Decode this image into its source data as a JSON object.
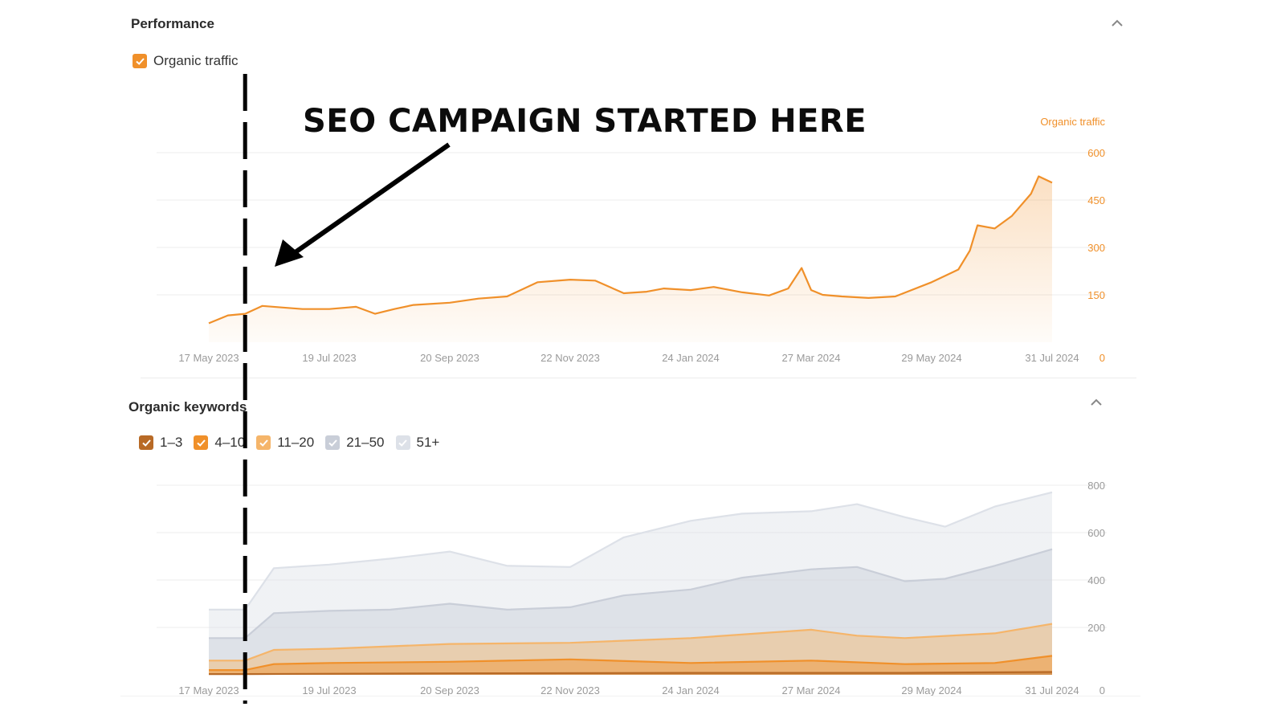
{
  "performance": {
    "title": "Performance",
    "legend_label": "Organic traffic",
    "legend_color": "#f0902a"
  },
  "keywords": {
    "title": "Organic keywords",
    "legend": [
      {
        "label": "1–3",
        "color": "#b86a26",
        "checked": true
      },
      {
        "label": "4–10",
        "color": "#f0902a",
        "checked": true
      },
      {
        "label": "11–20",
        "color": "#f5b56a",
        "checked": true
      },
      {
        "label": "21–50",
        "color": "#c9ced8",
        "checked": true
      },
      {
        "label": "51+",
        "color": "#dde1e8",
        "checked": true
      }
    ]
  },
  "annotation": {
    "text": "SEO CAMPAIGN STARTED HERE",
    "marker_date": "2023-06-05"
  },
  "colors": {
    "traffic_line": "#f0902a",
    "axis_text": "#9a9a9a",
    "axis_orange": "#f0902a",
    "grid": "#ececec"
  },
  "chart_data": [
    {
      "type": "area",
      "title": "",
      "y_axis_title": "Organic traffic",
      "x_ticks": [
        "17 May 2023",
        "19 Jul 2023",
        "20 Sep 2023",
        "22 Nov 2023",
        "24 Jan 2024",
        "27 Mar 2024",
        "29 May 2024",
        "31 Jul 2024"
      ],
      "y_ticks": [
        0,
        150,
        300,
        450,
        600
      ],
      "ylim": [
        0,
        600
      ],
      "x_range": [
        "2023-05-17",
        "2024-07-31"
      ],
      "grid": true,
      "series": [
        {
          "name": "Organic traffic",
          "color": "#f0902a",
          "x": [
            "2023-05-17",
            "2023-05-27",
            "2023-06-05",
            "2023-06-14",
            "2023-06-24",
            "2023-07-05",
            "2023-07-19",
            "2023-08-02",
            "2023-08-12",
            "2023-08-22",
            "2023-09-01",
            "2023-09-20",
            "2023-10-05",
            "2023-10-20",
            "2023-11-05",
            "2023-11-22",
            "2023-12-05",
            "2023-12-20",
            "2024-01-01",
            "2024-01-10",
            "2024-01-24",
            "2024-02-05",
            "2024-02-20",
            "2024-03-05",
            "2024-03-15",
            "2024-03-22",
            "2024-03-27",
            "2024-04-02",
            "2024-04-12",
            "2024-04-26",
            "2024-05-10",
            "2024-05-29",
            "2024-06-05",
            "2024-06-12",
            "2024-06-18",
            "2024-06-22",
            "2024-07-01",
            "2024-07-10",
            "2024-07-20",
            "2024-07-24",
            "2024-07-31"
          ],
          "y": [
            60,
            85,
            90,
            115,
            110,
            105,
            105,
            112,
            90,
            105,
            118,
            125,
            138,
            145,
            190,
            198,
            195,
            155,
            160,
            170,
            165,
            175,
            158,
            148,
            170,
            235,
            165,
            150,
            145,
            140,
            145,
            190,
            210,
            230,
            290,
            370,
            360,
            400,
            470,
            525,
            505
          ]
        }
      ]
    },
    {
      "type": "area",
      "title": "",
      "x_ticks": [
        "17 May 2023",
        "19 Jul 2023",
        "20 Sep 2023",
        "22 Nov 2023",
        "24 Jan 2024",
        "27 Mar 2024",
        "29 May 2024",
        "31 Jul 2024"
      ],
      "y_ticks": [
        0,
        200,
        400,
        600,
        800
      ],
      "ylim": [
        0,
        800
      ],
      "x_range": [
        "2023-05-17",
        "2024-07-31"
      ],
      "grid": true,
      "stacked": false,
      "series": [
        {
          "name": "51+",
          "color": "#dde1e8",
          "x": [
            "2023-05-17",
            "2023-06-05",
            "2023-06-20",
            "2023-07-19",
            "2023-08-20",
            "2023-09-20",
            "2023-10-20",
            "2023-11-22",
            "2023-12-20",
            "2024-01-24",
            "2024-02-20",
            "2024-03-27",
            "2024-04-20",
            "2024-05-15",
            "2024-06-05",
            "2024-07-01",
            "2024-07-31"
          ],
          "y": [
            275,
            275,
            450,
            465,
            490,
            520,
            460,
            455,
            580,
            650,
            680,
            690,
            720,
            665,
            625,
            710,
            770
          ]
        },
        {
          "name": "21–50",
          "color": "#c9ced8",
          "x": [
            "2023-05-17",
            "2023-06-05",
            "2023-06-20",
            "2023-07-19",
            "2023-08-20",
            "2023-09-20",
            "2023-10-20",
            "2023-11-22",
            "2023-12-20",
            "2024-01-24",
            "2024-02-20",
            "2024-03-27",
            "2024-04-20",
            "2024-05-15",
            "2024-06-05",
            "2024-07-01",
            "2024-07-31"
          ],
          "y": [
            155,
            155,
            260,
            270,
            275,
            300,
            275,
            285,
            335,
            360,
            410,
            445,
            455,
            395,
            405,
            460,
            530
          ]
        },
        {
          "name": "11–20",
          "color": "#f5b56a",
          "x": [
            "2023-05-17",
            "2023-06-05",
            "2023-06-20",
            "2023-07-19",
            "2023-09-20",
            "2023-11-22",
            "2024-01-24",
            "2024-03-27",
            "2024-04-20",
            "2024-05-15",
            "2024-07-01",
            "2024-07-31"
          ],
          "y": [
            60,
            60,
            105,
            110,
            130,
            135,
            155,
            190,
            165,
            155,
            175,
            215
          ]
        },
        {
          "name": "4–10",
          "color": "#f0902a",
          "x": [
            "2023-05-17",
            "2023-06-05",
            "2023-06-20",
            "2023-07-19",
            "2023-09-20",
            "2023-11-22",
            "2024-01-24",
            "2024-03-27",
            "2024-05-15",
            "2024-07-01",
            "2024-07-31"
          ],
          "y": [
            20,
            20,
            45,
            50,
            55,
            65,
            50,
            60,
            45,
            50,
            80
          ]
        },
        {
          "name": "1–3",
          "color": "#b86a26",
          "x": [
            "2023-05-17",
            "2023-06-05",
            "2023-09-20",
            "2024-01-24",
            "2024-05-15",
            "2024-07-31"
          ],
          "y": [
            3,
            3,
            6,
            8,
            8,
            12
          ]
        }
      ]
    }
  ]
}
